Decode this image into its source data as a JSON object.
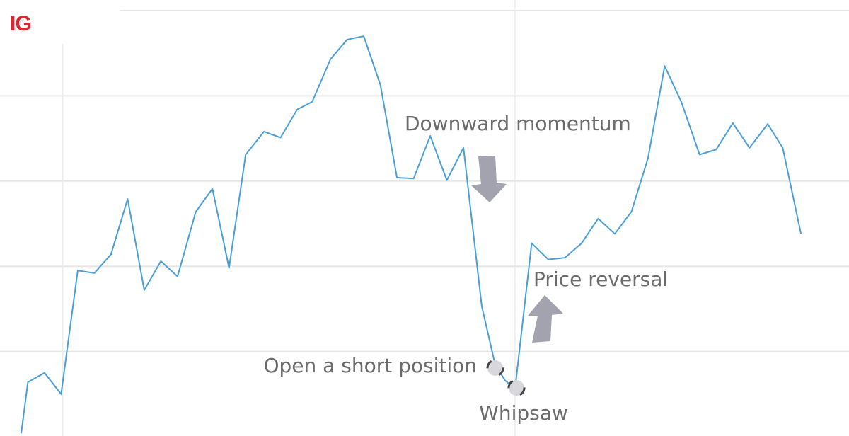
{
  "logo": "IG",
  "chart_data": {
    "type": "line",
    "x": [
      0,
      0.4,
      1.4,
      2.4,
      3.4,
      4.4,
      5.4,
      6.4,
      7.4,
      8.4,
      9.4,
      10.5,
      11.5,
      12.5,
      13.5,
      14.6,
      15.6,
      16.6,
      17.5,
      18.6,
      19.6,
      20.6,
      21.6,
      22.6,
      23.6,
      24.6,
      25.6,
      26.6,
      27.7,
      28.5,
      29.1,
      29.7,
      30.7,
      31.7,
      32.7,
      33.7,
      34.7,
      35.7,
      36.7,
      37.7,
      38.7,
      39.7,
      40.8,
      41.8,
      42.8,
      43.8,
      44.9,
      45.8,
      46.9
    ],
    "series": [
      {
        "color": "#4a9fd8",
        "values": [
          0.04,
          0.64,
          0.75,
          0.5,
          1.95,
          1.92,
          2.14,
          2.79,
          1.72,
          2.06,
          1.88,
          2.64,
          2.91,
          1.98,
          3.31,
          3.58,
          3.51,
          3.84,
          3.93,
          4.43,
          4.66,
          4.7,
          4.13,
          3.04,
          3.03,
          3.53,
          3.01,
          3.39,
          1.53,
          0.85,
          0.66,
          0.56,
          2.27,
          2.08,
          2.1,
          2.27,
          2.56,
          2.38,
          2.64,
          3.27,
          4.35,
          3.93,
          3.31,
          3.37,
          3.68,
          3.39,
          3.67,
          3.39,
          2.38
        ]
      }
    ],
    "xlim": [
      0,
      49
    ],
    "ylim": [
      0,
      5
    ],
    "xticks": [
      2.5,
      29.7
    ],
    "yticks": [
      1,
      2,
      3,
      4,
      5
    ],
    "grid": true,
    "annotations": [
      "Downward momentum",
      "Price reversal",
      "Open a short position",
      "Whipsaw"
    ]
  }
}
